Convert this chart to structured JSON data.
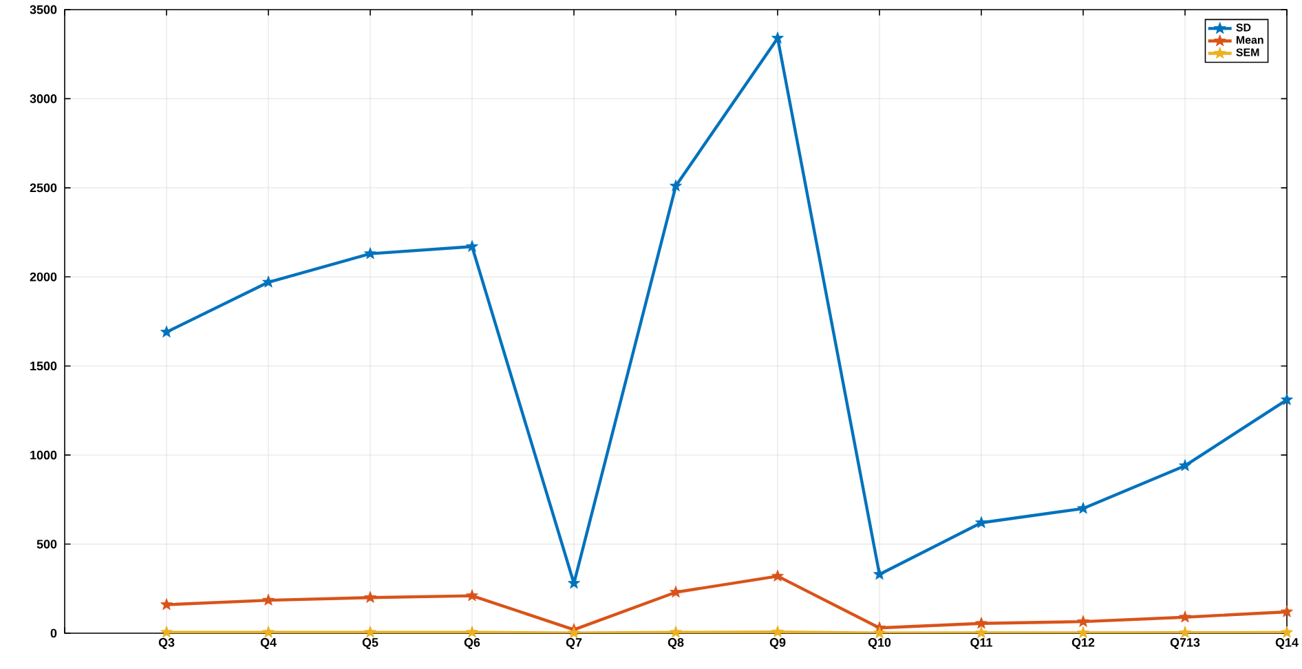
{
  "chart_data": {
    "type": "line",
    "categories": [
      null,
      "Q3",
      "Q4",
      "Q5",
      "Q6",
      "Q7",
      "Q8",
      "Q9",
      "Q10",
      "Q11",
      "Q12",
      "Q713",
      "Q14"
    ],
    "series": [
      {
        "name": "SD",
        "color": "#0072bd",
        "values": [
          null,
          1690,
          1970,
          2130,
          2170,
          280,
          2510,
          3340,
          330,
          620,
          700,
          940,
          1310
        ]
      },
      {
        "name": "Mean",
        "color": "#d95319",
        "values": [
          null,
          160,
          185,
          200,
          210,
          20,
          230,
          320,
          30,
          55,
          65,
          90,
          120
        ]
      },
      {
        "name": "SEM",
        "color": "#edb120",
        "values": [
          null,
          5,
          5,
          5,
          5,
          1,
          5,
          7,
          1,
          2,
          2,
          3,
          4
        ]
      }
    ],
    "ylim": [
      0,
      3500
    ],
    "yticks": [
      0,
      500,
      1000,
      1500,
      2000,
      2500,
      3000,
      3500
    ],
    "grid": true,
    "legend": "top right",
    "marker": "star",
    "line_style": "solid"
  }
}
